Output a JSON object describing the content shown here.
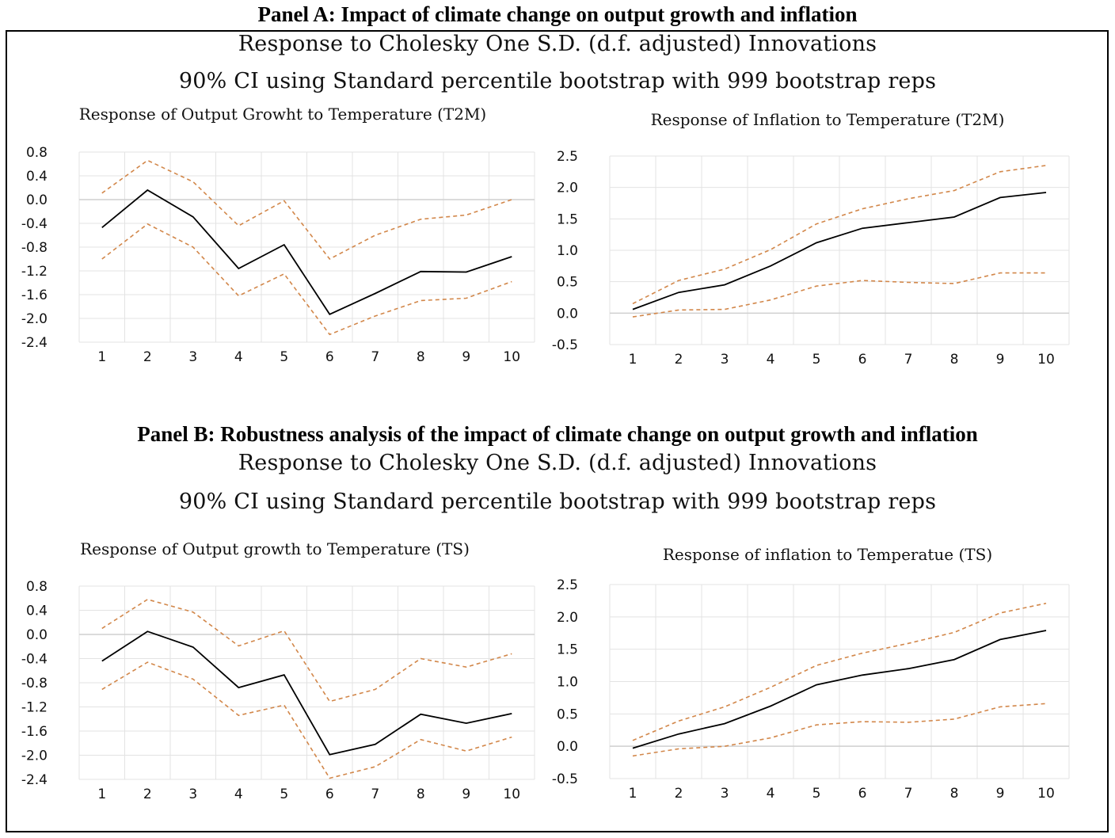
{
  "panel_a": {
    "title": "Panel A: Impact of climate change on output growth and inflation",
    "subtitle1": "Response to Cholesky One S.D. (d.f. adjusted) Innovations",
    "subtitle2": "90% CI using Standard percentile bootstrap with 999 bootstrap reps"
  },
  "panel_b": {
    "title": "Panel B: Robustness analysis of the impact of climate change on output growth and inflation",
    "subtitle1": "Response to Cholesky One S.D. (d.f. adjusted) Innovations",
    "subtitle2": "90% CI using Standard percentile bootstrap with 999 bootstrap reps"
  },
  "colors": {
    "response": "#000000",
    "ci": "#d2874a",
    "grid": "#e3e3e3"
  },
  "chart_data": [
    {
      "type": "line",
      "title": "Response of Output Growht to Temperature (T2M)",
      "x": [
        1,
        2,
        3,
        4,
        5,
        6,
        7,
        8,
        9,
        10
      ],
      "ylim": [
        -2.4,
        0.8
      ],
      "yticks": [
        "0.8",
        "0.4",
        "0.0",
        "-0.4",
        "-0.8",
        "-1.2",
        "-1.6",
        "-2.0",
        "-2.4"
      ],
      "ytick_values": [
        0.8,
        0.4,
        0.0,
        -0.4,
        -0.8,
        -1.2,
        -1.6,
        -2.0,
        -2.4
      ],
      "grid": true,
      "series": [
        {
          "role": "response",
          "values": [
            -0.47,
            0.16,
            -0.29,
            -1.16,
            -0.76,
            -1.93,
            -1.58,
            -1.21,
            -1.22,
            -0.96
          ]
        },
        {
          "role": "upper",
          "values": [
            0.11,
            0.66,
            0.3,
            -0.44,
            -0.02,
            -1.0,
            -0.6,
            -0.33,
            -0.26,
            0.0
          ]
        },
        {
          "role": "lower",
          "values": [
            -1.0,
            -0.41,
            -0.8,
            -1.62,
            -1.25,
            -2.27,
            -1.96,
            -1.7,
            -1.66,
            -1.38
          ]
        }
      ]
    },
    {
      "type": "line",
      "title": "Response of Inflation to Temperature (T2M)",
      "x": [
        1,
        2,
        3,
        4,
        5,
        6,
        7,
        8,
        9,
        10
      ],
      "ylim": [
        -0.5,
        2.5
      ],
      "yticks": [
        "2.5",
        "2.0",
        "1.5",
        "1.0",
        "0.5",
        "0.0",
        "-0.5"
      ],
      "ytick_values": [
        2.5,
        2.0,
        1.5,
        1.0,
        0.5,
        0.0,
        -0.5
      ],
      "grid": true,
      "series": [
        {
          "role": "response",
          "values": [
            0.06,
            0.33,
            0.45,
            0.75,
            1.12,
            1.35,
            1.44,
            1.53,
            1.84,
            1.92
          ]
        },
        {
          "role": "upper",
          "values": [
            0.15,
            0.52,
            0.7,
            1.01,
            1.42,
            1.66,
            1.82,
            1.95,
            2.25,
            2.35
          ]
        },
        {
          "role": "lower",
          "values": [
            -0.06,
            0.05,
            0.06,
            0.21,
            0.43,
            0.52,
            0.49,
            0.47,
            0.64,
            0.64
          ]
        }
      ]
    },
    {
      "type": "line",
      "title": "Response of Output growth to Temperature (TS)",
      "x": [
        1,
        2,
        3,
        4,
        5,
        6,
        7,
        8,
        9,
        10
      ],
      "ylim": [
        -2.4,
        0.8
      ],
      "yticks": [
        "0.8",
        "0.4",
        "0.0",
        "-0.4",
        "-0.8",
        "-1.2",
        "-1.6",
        "-2.0",
        "-2.4"
      ],
      "ytick_values": [
        0.8,
        0.4,
        0.0,
        -0.4,
        -0.8,
        -1.2,
        -1.6,
        -2.0,
        -2.4
      ],
      "grid": true,
      "series": [
        {
          "role": "response",
          "values": [
            -0.44,
            0.05,
            -0.21,
            -0.88,
            -0.67,
            -1.99,
            -1.82,
            -1.32,
            -1.47,
            -1.31
          ]
        },
        {
          "role": "upper",
          "values": [
            0.1,
            0.58,
            0.37,
            -0.19,
            0.06,
            -1.11,
            -0.91,
            -0.4,
            -0.54,
            -0.32
          ]
        },
        {
          "role": "lower",
          "values": [
            -0.91,
            -0.46,
            -0.74,
            -1.34,
            -1.17,
            -2.38,
            -2.19,
            -1.74,
            -1.93,
            -1.7
          ]
        }
      ]
    },
    {
      "type": "line",
      "title": "Response of inflation to Temperatue (TS)",
      "x": [
        1,
        2,
        3,
        4,
        5,
        6,
        7,
        8,
        9,
        10
      ],
      "ylim": [
        -0.5,
        2.5
      ],
      "yticks": [
        "2.5",
        "2.0",
        "1.5",
        "1.0",
        "0.5",
        "0.0",
        "-0.5"
      ],
      "ytick_values": [
        2.5,
        2.0,
        1.5,
        1.0,
        0.5,
        0.0,
        -0.5
      ],
      "grid": true,
      "series": [
        {
          "role": "response",
          "values": [
            -0.03,
            0.19,
            0.35,
            0.62,
            0.95,
            1.1,
            1.2,
            1.34,
            1.65,
            1.79
          ]
        },
        {
          "role": "upper",
          "values": [
            0.09,
            0.39,
            0.61,
            0.91,
            1.25,
            1.44,
            1.59,
            1.76,
            2.06,
            2.21
          ]
        },
        {
          "role": "lower",
          "values": [
            -0.15,
            -0.04,
            0.0,
            0.13,
            0.33,
            0.38,
            0.37,
            0.42,
            0.61,
            0.66
          ]
        }
      ]
    }
  ]
}
